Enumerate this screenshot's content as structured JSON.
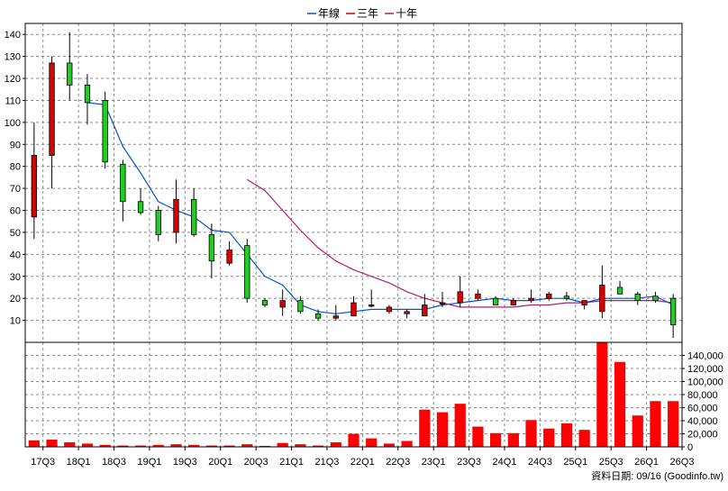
{
  "chart_data": {
    "type": "candlestick",
    "legend": {
      "placement": "top-center",
      "items": [
        {
          "name": "年線",
          "color": "#0055cc"
        },
        {
          "name": "三年",
          "color": "#cc0000"
        },
        {
          "name": "十年",
          "color": "#aa2266"
        }
      ]
    },
    "price_axis": {
      "ylim": [
        0,
        145
      ],
      "ticks": [
        10,
        20,
        30,
        40,
        50,
        60,
        70,
        80,
        90,
        100,
        110,
        120,
        130,
        140
      ],
      "side": "left"
    },
    "volume_axis": {
      "ylim": [
        0,
        160000
      ],
      "ticks": [
        "0",
        "20,000",
        "40,000",
        "60,000",
        "80,000",
        "100,000",
        "120,000",
        "140,000"
      ],
      "tick_values": [
        0,
        20000,
        40000,
        60000,
        80000,
        100000,
        120000,
        140000
      ],
      "side": "right"
    },
    "x_labels": [
      "17Q3",
      "18Q1",
      "18Q3",
      "19Q1",
      "19Q3",
      "20Q1",
      "20Q3",
      "21Q1",
      "21Q3",
      "22Q1",
      "22Q3",
      "23Q1",
      "23Q3",
      "24Q1",
      "24Q3",
      "25Q1",
      "25Q3",
      "26Q1",
      "26Q3"
    ],
    "grid": true,
    "footer": "資料日期: 09/16  (Goodinfo.tw)",
    "candles": [
      {
        "o": 57,
        "h": 100,
        "l": 47,
        "c": 85
      },
      {
        "o": 85,
        "h": 130,
        "l": 70,
        "c": 127
      },
      {
        "o": 127,
        "h": 141,
        "l": 110,
        "c": 117
      },
      {
        "o": 117,
        "h": 122,
        "l": 99,
        "c": 109
      },
      {
        "o": 110,
        "h": 114,
        "l": 79,
        "c": 82
      },
      {
        "o": 81,
        "h": 83,
        "l": 55,
        "c": 64
      },
      {
        "o": 64,
        "h": 70,
        "l": 58,
        "c": 59
      },
      {
        "o": 60,
        "h": 62,
        "l": 46,
        "c": 49
      },
      {
        "o": 50,
        "h": 74,
        "l": 45,
        "c": 65
      },
      {
        "o": 65,
        "h": 70,
        "l": 48,
        "c": 49
      },
      {
        "o": 49,
        "h": 54,
        "l": 29,
        "c": 37
      },
      {
        "o": 36,
        "h": 46,
        "l": 35,
        "c": 42
      },
      {
        "o": 44,
        "h": 47,
        "l": 18,
        "c": 20
      },
      {
        "o": 19,
        "h": 20,
        "l": 16,
        "c": 17
      },
      {
        "o": 16,
        "h": 24,
        "l": 12,
        "c": 19
      },
      {
        "o": 19,
        "h": 21,
        "l": 13,
        "c": 14
      },
      {
        "o": 13,
        "h": 15,
        "l": 10,
        "c": 11
      },
      {
        "o": 11,
        "h": 17,
        "l": 10,
        "c": 12
      },
      {
        "o": 12,
        "h": 21,
        "l": 12,
        "c": 18
      },
      {
        "o": 17,
        "h": 24,
        "l": 16,
        "c": 17
      },
      {
        "o": 14,
        "h": 17,
        "l": 13,
        "c": 16
      },
      {
        "o": 13,
        "h": 15,
        "l": 11,
        "c": 14
      },
      {
        "o": 12,
        "h": 22,
        "l": 12,
        "c": 17
      },
      {
        "o": 18,
        "h": 23,
        "l": 16,
        "c": 18
      },
      {
        "o": 18,
        "h": 30,
        "l": 16,
        "c": 23
      },
      {
        "o": 20,
        "h": 24,
        "l": 19,
        "c": 22
      },
      {
        "o": 20,
        "h": 21,
        "l": 17,
        "c": 17
      },
      {
        "o": 17,
        "h": 20,
        "l": 17,
        "c": 19
      },
      {
        "o": 19,
        "h": 24,
        "l": 18,
        "c": 20
      },
      {
        "o": 20,
        "h": 23,
        "l": 19,
        "c": 22
      },
      {
        "o": 21,
        "h": 23,
        "l": 19,
        "c": 20
      },
      {
        "o": 17,
        "h": 19,
        "l": 15,
        "c": 19
      },
      {
        "o": 14,
        "h": 35,
        "l": 11,
        "c": 26
      },
      {
        "o": 25,
        "h": 28,
        "l": 22,
        "c": 22
      },
      {
        "o": 22,
        "h": 23,
        "l": 17,
        "c": 19
      },
      {
        "o": 21,
        "h": 23,
        "l": 18,
        "c": 19
      },
      {
        "o": 20,
        "h": 22,
        "l": 2,
        "c": 8
      }
    ],
    "ma_year": [
      null,
      null,
      null,
      109,
      108,
      89,
      77,
      64,
      60,
      57,
      51,
      50,
      40,
      30,
      26,
      17,
      14,
      13,
      14,
      15,
      15,
      15,
      15,
      17,
      18,
      19,
      20,
      19,
      19,
      20,
      20,
      18,
      20,
      20,
      20,
      21,
      17
    ],
    "ma_3y": [
      null,
      null,
      null,
      null,
      null,
      null,
      null,
      null,
      null,
      null,
      null,
      null,
      74,
      69,
      60,
      51,
      43,
      37,
      33,
      30,
      27,
      23,
      20,
      18,
      16,
      16,
      16,
      16,
      17,
      17,
      18,
      18,
      19,
      19,
      19,
      19,
      18
    ],
    "volume": [
      10000,
      11000,
      7000,
      5000,
      3000,
      2000,
      2000,
      3000,
      4000,
      3000,
      2000,
      2000,
      4000,
      1500,
      6000,
      4000,
      2000,
      7000,
      20000,
      13000,
      5000,
      9000,
      57000,
      53000,
      66000,
      31000,
      21000,
      21000,
      41000,
      28000,
      36000,
      26000,
      160000,
      130000,
      48000,
      70000,
      70000
    ]
  }
}
